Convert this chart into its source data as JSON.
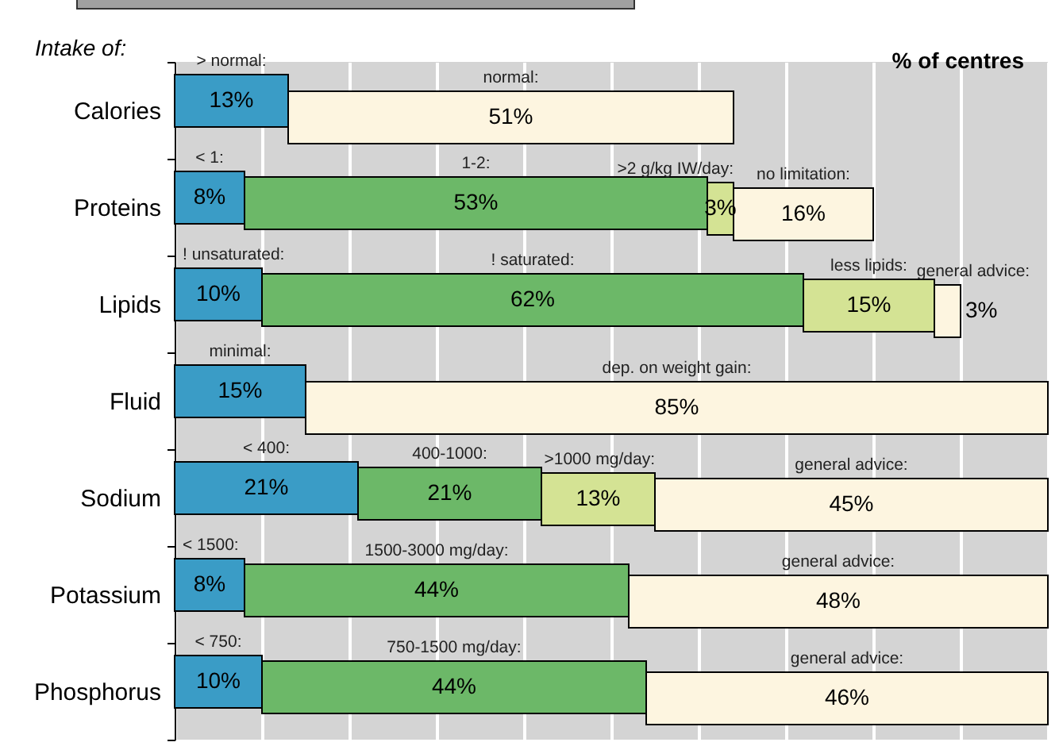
{
  "chart_data": {
    "type": "bar",
    "orientation": "horizontal",
    "stacked": true,
    "xlabel": "% of centres",
    "ylabel": "Intake of:",
    "categories": [
      "Calories",
      "Proteins",
      "Lipids",
      "Fluid",
      "Sodium",
      "Potassium",
      "Phosphorus"
    ],
    "series": [
      {
        "color": "#3a9cc6",
        "values": [
          13,
          8,
          10,
          15,
          21,
          8,
          10
        ],
        "value_labels": [
          "13%",
          "8%",
          "10%",
          "15%",
          "21%",
          "8%",
          "10%"
        ]
      },
      {
        "color": "#6cb868",
        "values": [
          null,
          53,
          62,
          null,
          21,
          44,
          44
        ],
        "value_labels": [
          null,
          "53%",
          "62%",
          null,
          "21%",
          "44%",
          "44%"
        ]
      },
      {
        "color": "#d4e394",
        "values": [
          null,
          3,
          15,
          null,
          13,
          null,
          null
        ],
        "value_labels": [
          null,
          "3%",
          "15%",
          null,
          "13%",
          null,
          null
        ]
      },
      {
        "color": "#fdf5e0",
        "values": [
          51,
          16,
          3,
          85,
          45,
          48,
          46
        ],
        "value_labels": [
          "51%",
          "16%",
          "3%",
          "85%",
          "45%",
          "48%",
          "46%"
        ]
      }
    ],
    "xlim": [
      0,
      100
    ],
    "xticks": [
      {
        "value": 0,
        "label": null
      },
      {
        "value": 10,
        "label": null
      },
      {
        "value": 20,
        "label": null
      },
      {
        "value": 30,
        "label": null
      },
      {
        "value": 40,
        "label": null
      },
      {
        "value": 50,
        "label": null
      },
      {
        "value": 60,
        "label": null
      },
      {
        "value": 70,
        "label": null
      },
      {
        "value": 80,
        "label": null
      },
      {
        "value": 90,
        "label": null
      },
      {
        "value": 100,
        "label": null
      }
    ],
    "grid": "x",
    "legend": false,
    "tick_labels": "y",
    "annotations": [
      "> normal:",
      "normal:",
      "< 1:",
      "1-2:",
      ">2 g/kg IW/day:",
      "no limitation:",
      "! unsaturated:",
      "! saturated:",
      "less lipids:",
      "general advice:",
      "minimal:",
      "dep. on weight gain:",
      "< 400:",
      "400-1000:",
      ">1000 mg/day:",
      "general advice:",
      "< 1500:",
      "1500-3000 mg/day:",
      "general advice:",
      "< 750:",
      "750-1500 mg/day:",
      "general advice:"
    ]
  }
}
